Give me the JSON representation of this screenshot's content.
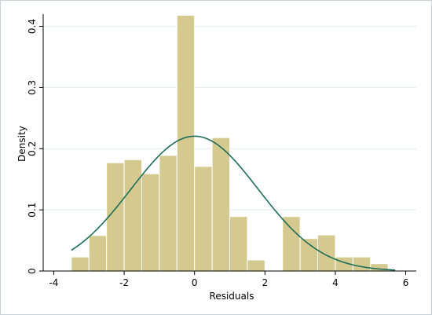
{
  "chart_data": {
    "type": "bar",
    "xlabel": "Residuals",
    "ylabel": "Density",
    "xlim": [
      -4.3,
      6.3
    ],
    "ylim": [
      0,
      0.42
    ],
    "x_ticks": [
      -4,
      -2,
      0,
      2,
      4,
      6
    ],
    "y_ticks": [
      0,
      0.1,
      0.2,
      0.3,
      0.4
    ],
    "bin_width": 0.5,
    "histogram": [
      {
        "x0": -3.5,
        "x1": -3.0,
        "density": 0.023
      },
      {
        "x0": -3.0,
        "x1": -2.5,
        "density": 0.058
      },
      {
        "x0": -2.5,
        "x1": -2.0,
        "density": 0.177
      },
      {
        "x0": -2.0,
        "x1": -1.5,
        "density": 0.182
      },
      {
        "x0": -1.5,
        "x1": -1.0,
        "density": 0.159
      },
      {
        "x0": -1.0,
        "x1": -0.5,
        "density": 0.189
      },
      {
        "x0": -0.5,
        "x1": 0.0,
        "density": 0.418
      },
      {
        "x0": 0.0,
        "x1": 0.5,
        "density": 0.171
      },
      {
        "x0": 0.5,
        "x1": 1.0,
        "density": 0.218
      },
      {
        "x0": 1.0,
        "x1": 1.5,
        "density": 0.089
      },
      {
        "x0": 1.5,
        "x1": 2.0,
        "density": 0.018
      },
      {
        "x0": 2.0,
        "x1": 2.5,
        "density": 0
      },
      {
        "x0": 2.5,
        "x1": 3.0,
        "density": 0.089
      },
      {
        "x0": 3.0,
        "x1": 3.5,
        "density": 0.053
      },
      {
        "x0": 3.5,
        "x1": 4.0,
        "density": 0.059
      },
      {
        "x0": 4.0,
        "x1": 4.5,
        "density": 0.023
      },
      {
        "x0": 4.5,
        "x1": 5.0,
        "density": 0.023
      },
      {
        "x0": 5.0,
        "x1": 5.5,
        "density": 0.012
      }
    ],
    "normal_curve": {
      "mean": 0,
      "sd": 1.81,
      "x_start": -3.5,
      "x_end": 5.7
    },
    "grid": true,
    "colors": {
      "bar_fill": "#d4c98e",
      "bar_stroke": "#ffffff",
      "curve": "#1e6e5a",
      "grid": "#e3eaee",
      "axis": "#000000"
    }
  }
}
